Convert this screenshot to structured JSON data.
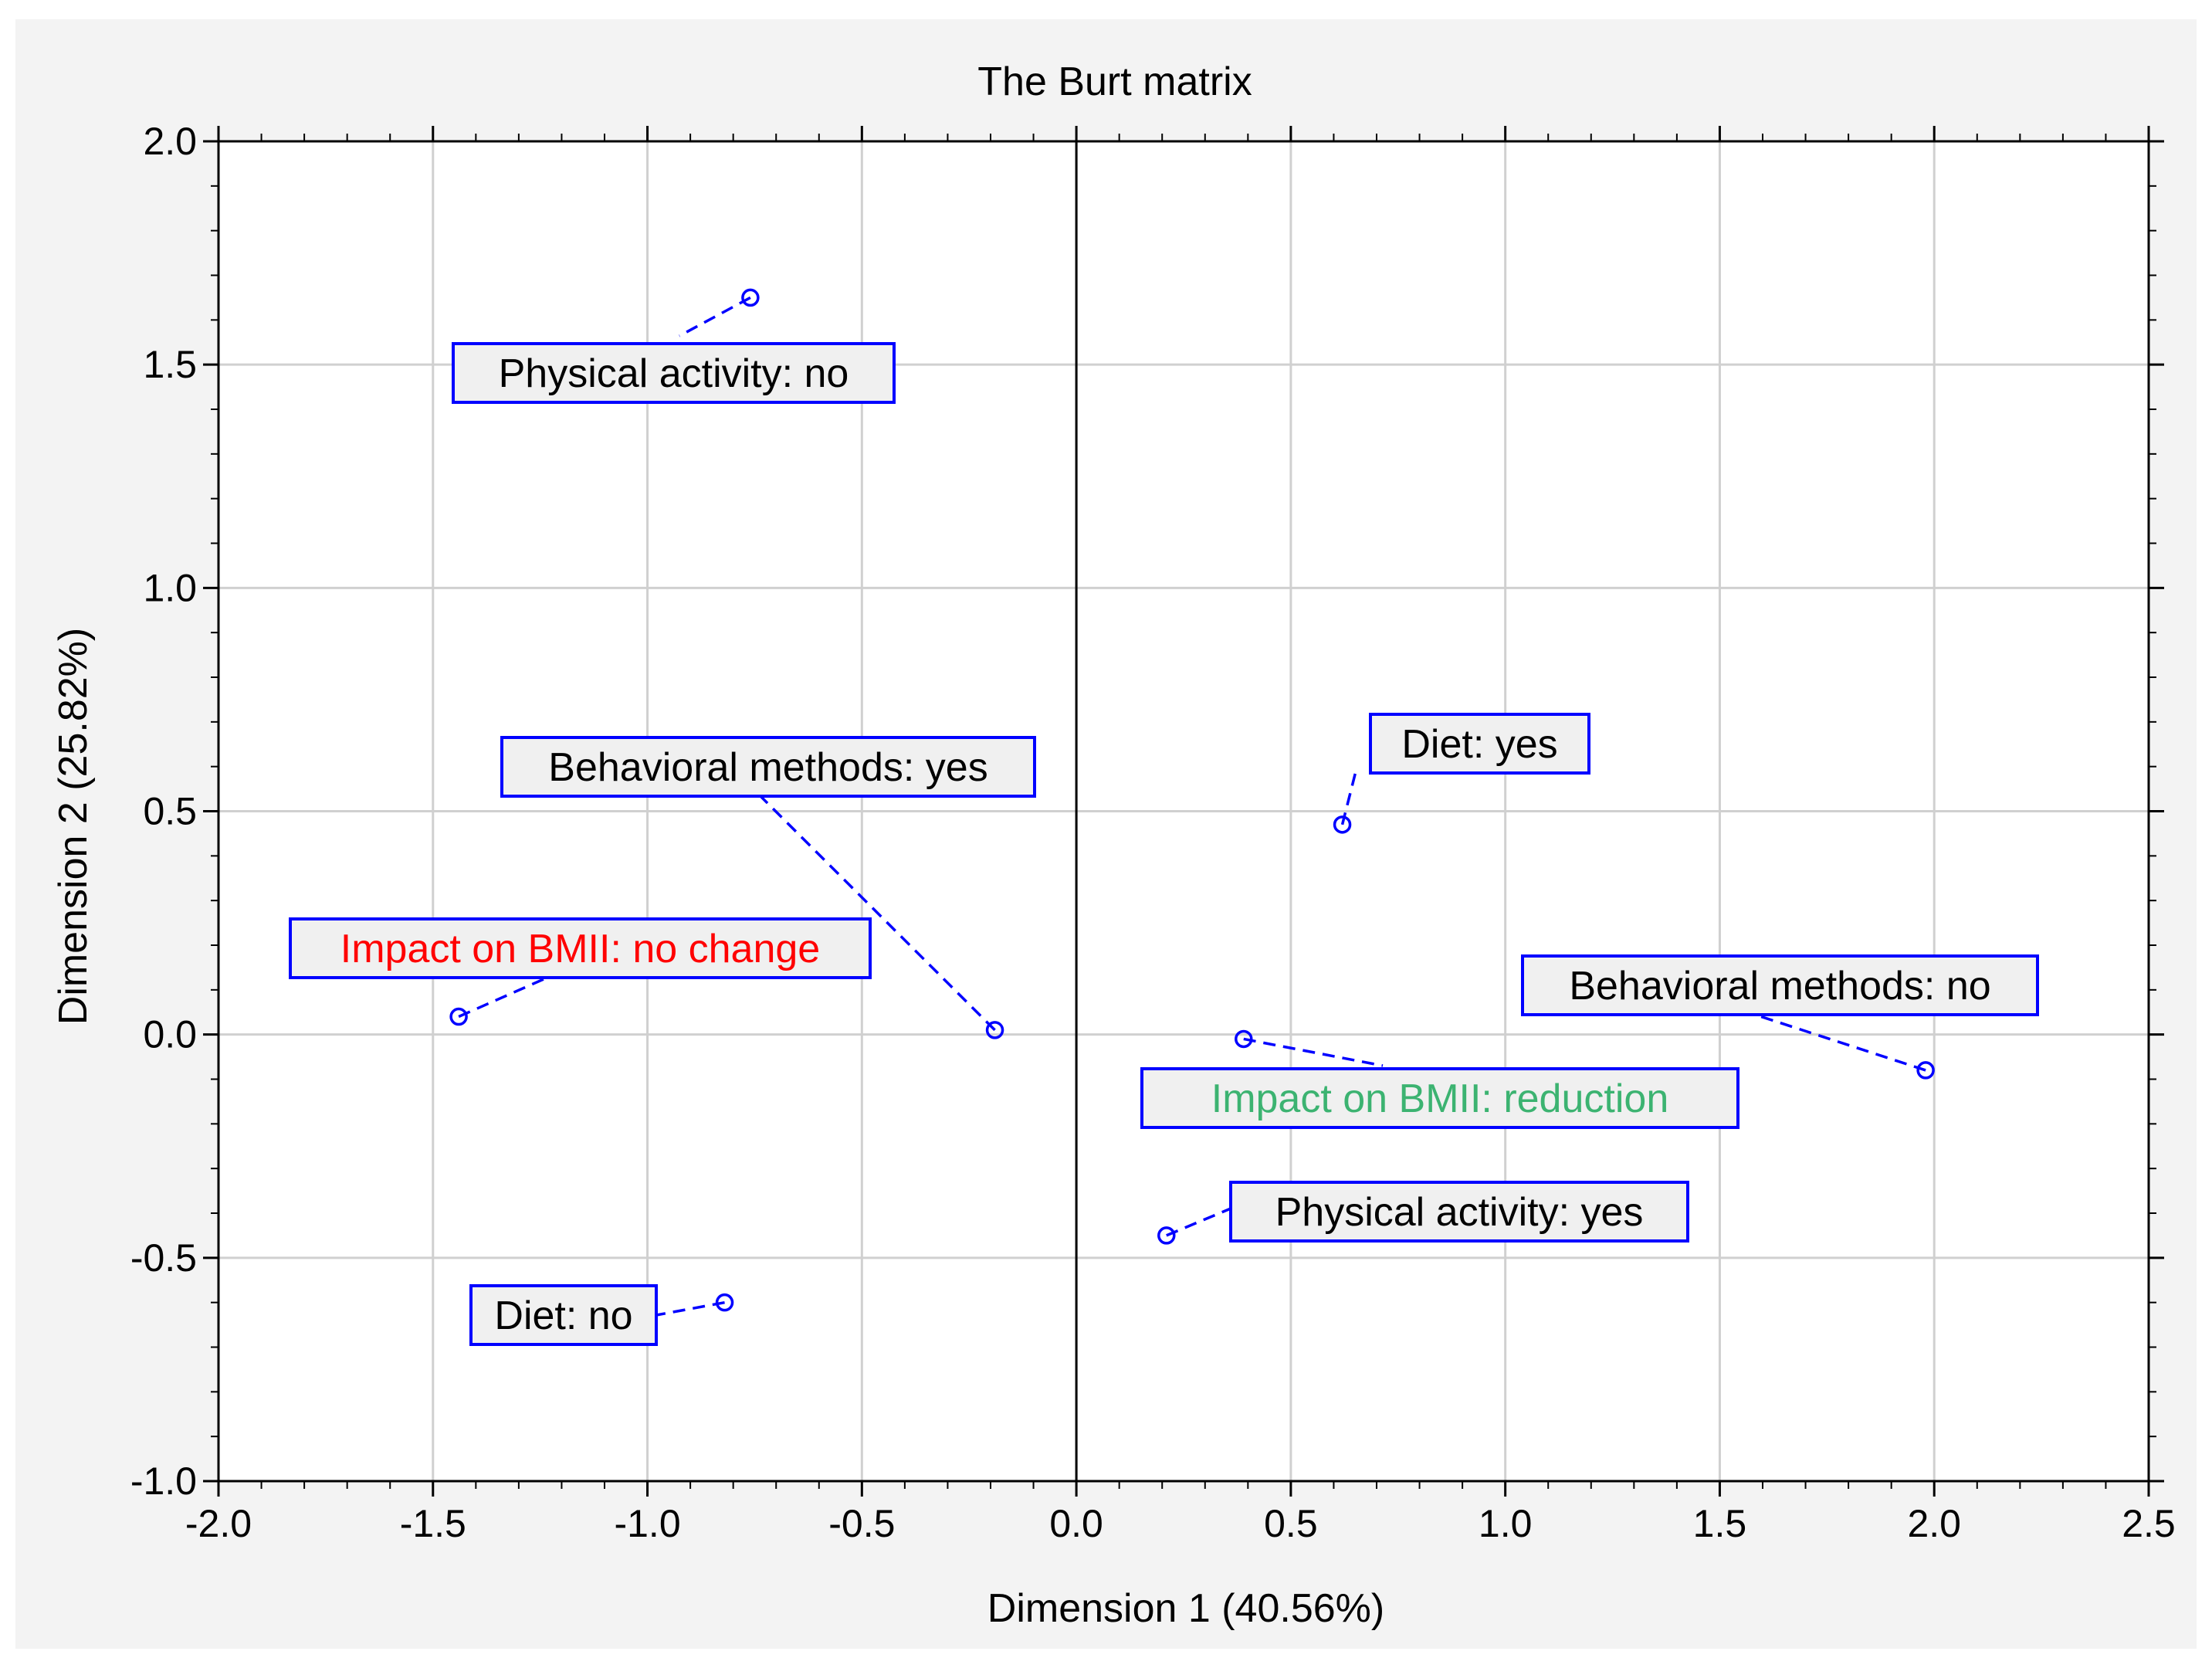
{
  "chart_data": {
    "type": "scatter",
    "title": "The Burt matrix",
    "xlabel": "Dimension 1 (40.56%)",
    "ylabel": "Dimension 2 (25.82%)",
    "xlim": [
      -2.0,
      2.5
    ],
    "ylim": [
      -1.0,
      2.0
    ],
    "xticks": [
      -2.0,
      -1.5,
      -1.0,
      -0.5,
      0.0,
      0.5,
      1.0,
      1.5,
      2.0,
      2.5
    ],
    "yticks": [
      2.0,
      1.5,
      1.0,
      0.5,
      0.0,
      -0.5,
      -1.0
    ],
    "xtick_labels": [
      "-2.0",
      "-1.5",
      "-1.0",
      "-0.5",
      "0.0",
      "0.5",
      "1.0",
      "1.5",
      "2.0",
      "2.5"
    ],
    "ytick_labels": [
      "2.0",
      "1.5",
      "1.0",
      "0.5",
      "0.0",
      "-0.5",
      "-1.0"
    ],
    "grid": true,
    "reference_lines": {
      "x": 0.0
    },
    "points": [
      {
        "label": "Physical activity: no",
        "x": -0.76,
        "y": 1.65,
        "color": "#000000"
      },
      {
        "label": "Behavioral methods: yes",
        "x": -0.19,
        "y": 0.01,
        "color": "#000000"
      },
      {
        "label": "Impact on BMII: no change",
        "x": -1.44,
        "y": 0.04,
        "color": "#ff0000"
      },
      {
        "label": "Diet: no",
        "x": -0.82,
        "y": -0.6,
        "color": "#000000"
      },
      {
        "label": "Diet: yes",
        "x": 0.62,
        "y": 0.47,
        "color": "#000000"
      },
      {
        "label": "Behavioral methods: no",
        "x": 1.98,
        "y": -0.08,
        "color": "#000000"
      },
      {
        "label": "Impact on BMII: reduction",
        "x": 0.39,
        "y": -0.01,
        "color": "#3cb371"
      },
      {
        "label": "Physical activity: yes",
        "x": 0.21,
        "y": -0.45,
        "color": "#000000"
      }
    ]
  },
  "colors": {
    "marker": "#0000ff",
    "label_border": "#0000ff",
    "label_background": "#f0f0f0",
    "grid": "#d0d0d0",
    "axis": "#000000"
  }
}
